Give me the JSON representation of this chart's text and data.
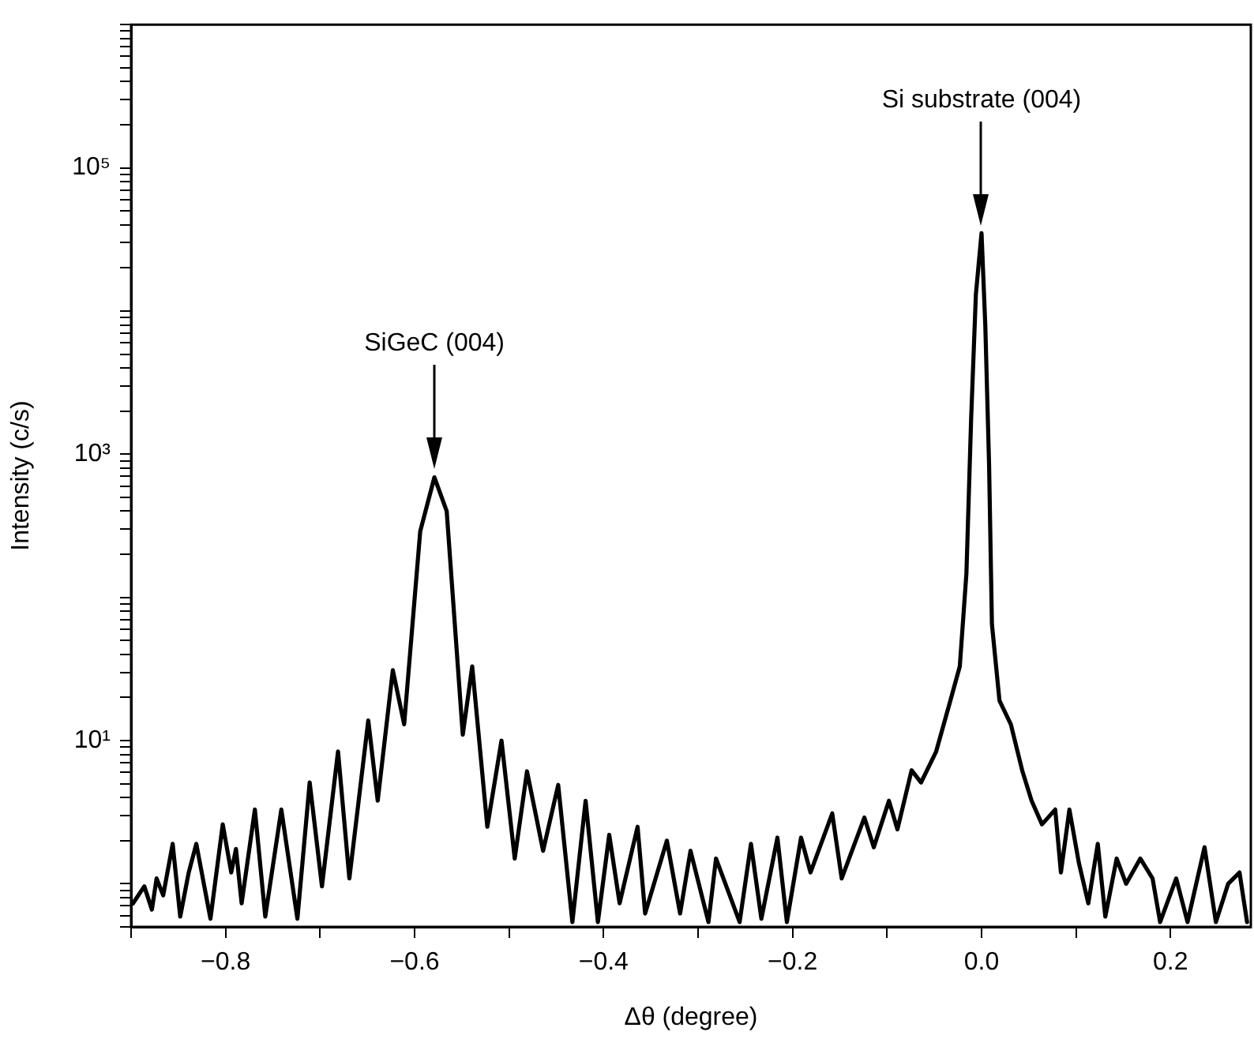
{
  "chart_data": {
    "type": "line",
    "xlabel": "Δθ (degree)",
    "ylabel": "Intensity (c/s)",
    "log": "y",
    "grid": false,
    "legend": false,
    "marker": "none",
    "line_style": "solid",
    "xlim": [
      -0.9,
      0.285
    ],
    "xticks": [
      {
        "value": -0.9,
        "label": null
      },
      {
        "value": -0.8,
        "label": "−0.8"
      },
      {
        "value": -0.7,
        "label": null
      },
      {
        "value": -0.6,
        "label": "−0.6"
      },
      {
        "value": -0.5,
        "label": null
      },
      {
        "value": -0.4,
        "label": "−0.4"
      },
      {
        "value": -0.3,
        "label": null
      },
      {
        "value": -0.2,
        "label": "−0.2"
      },
      {
        "value": -0.1,
        "label": null
      },
      {
        "value": 0,
        "label": "0.0"
      },
      {
        "value": 0.1,
        "label": null
      },
      {
        "value": 0.2,
        "label": "0.2"
      }
    ],
    "ylim": [
      0.5,
      1000000
    ],
    "yticks": [
      {
        "value": 0.5,
        "label": null
      },
      {
        "value": 0.6,
        "label": null
      },
      {
        "value": 0.7,
        "label": null
      },
      {
        "value": 0.8,
        "label": null
      },
      {
        "value": 0.9,
        "label": null
      },
      {
        "value": 1,
        "label": null
      },
      {
        "value": 2,
        "label": null
      },
      {
        "value": 3,
        "label": null
      },
      {
        "value": 4,
        "label": null
      },
      {
        "value": 5,
        "label": null
      },
      {
        "value": 6,
        "label": null
      },
      {
        "value": 7,
        "label": null
      },
      {
        "value": 8,
        "label": null
      },
      {
        "value": 9,
        "label": null
      },
      {
        "value": 10,
        "label": "10¹"
      },
      {
        "value": 20,
        "label": null
      },
      {
        "value": 30,
        "label": null
      },
      {
        "value": 40,
        "label": null
      },
      {
        "value": 50,
        "label": null
      },
      {
        "value": 60,
        "label": null
      },
      {
        "value": 70,
        "label": null
      },
      {
        "value": 80,
        "label": null
      },
      {
        "value": 90,
        "label": null
      },
      {
        "value": 100,
        "label": null
      },
      {
        "value": 200,
        "label": null
      },
      {
        "value": 300,
        "label": null
      },
      {
        "value": 400,
        "label": null
      },
      {
        "value": 500,
        "label": null
      },
      {
        "value": 600,
        "label": null
      },
      {
        "value": 700,
        "label": null
      },
      {
        "value": 800,
        "label": null
      },
      {
        "value": 900,
        "label": null
      },
      {
        "value": 1000,
        "label": "10³"
      },
      {
        "value": 2000,
        "label": null
      },
      {
        "value": 3000,
        "label": null
      },
      {
        "value": 4000,
        "label": null
      },
      {
        "value": 5000,
        "label": null
      },
      {
        "value": 6000,
        "label": null
      },
      {
        "value": 7000,
        "label": null
      },
      {
        "value": 8000,
        "label": null
      },
      {
        "value": 9000,
        "label": null
      },
      {
        "value": 10000,
        "label": null
      },
      {
        "value": 20000,
        "label": null
      },
      {
        "value": 30000,
        "label": null
      },
      {
        "value": 40000,
        "label": null
      },
      {
        "value": 50000,
        "label": null
      },
      {
        "value": 60000,
        "label": null
      },
      {
        "value": 70000,
        "label": null
      },
      {
        "value": 80000,
        "label": null
      },
      {
        "value": 90000,
        "label": null
      },
      {
        "value": 100000,
        "label": "10⁵"
      },
      {
        "value": 200000,
        "label": null
      },
      {
        "value": 300000,
        "label": null
      },
      {
        "value": 400000,
        "label": null
      },
      {
        "value": 500000,
        "label": null
      },
      {
        "value": 600000,
        "label": null
      },
      {
        "value": 700000,
        "label": null
      },
      {
        "value": 800000,
        "label": null
      },
      {
        "value": 900000,
        "label": null
      },
      {
        "value": 1000000,
        "label": null
      }
    ],
    "annotations": [
      "SiGeC (004)",
      "Si substrate (004)"
    ],
    "x": [
      -0.898,
      -0.886,
      -0.878,
      -0.873,
      -0.866,
      -0.856,
      -0.848,
      -0.839,
      -0.831,
      -0.816,
      -0.803,
      -0.794,
      -0.789,
      -0.783,
      -0.769,
      -0.758,
      -0.741,
      -0.724,
      -0.711,
      -0.698,
      -0.681,
      -0.669,
      -0.649,
      -0.639,
      -0.623,
      -0.611,
      -0.594,
      -0.579,
      -0.566,
      -0.549,
      -0.539,
      -0.523,
      -0.508,
      -0.494,
      -0.481,
      -0.464,
      -0.448,
      -0.433,
      -0.419,
      -0.406,
      -0.394,
      -0.383,
      -0.364,
      -0.356,
      -0.333,
      -0.319,
      -0.308,
      -0.289,
      -0.281,
      -0.256,
      -0.244,
      -0.233,
      -0.216,
      -0.206,
      -0.191,
      -0.181,
      -0.158,
      -0.148,
      -0.124,
      -0.114,
      -0.098,
      -0.089,
      -0.074,
      -0.064,
      -0.048,
      -0.033,
      -0.023,
      -0.016,
      -0.011,
      -0.006,
      0,
      0.004,
      0.008,
      0.011,
      0.019,
      0.031,
      0.043,
      0.053,
      0.064,
      0.078,
      0.084,
      0.093,
      0.103,
      0.113,
      0.123,
      0.131,
      0.143,
      0.153,
      0.168,
      0.181,
      0.189,
      0.206,
      0.218,
      0.236,
      0.248,
      0.261,
      0.273,
      0.281
    ],
    "series": [
      {
        "color": "#000000",
        "values": [
          0.73,
          0.96,
          0.66,
          1.09,
          0.83,
          1.9,
          0.59,
          1.2,
          1.9,
          0.57,
          2.6,
          1.2,
          1.75,
          0.73,
          3.3,
          0.59,
          3.3,
          0.57,
          5.1,
          0.96,
          8.4,
          1.09,
          13.8,
          3.8,
          31,
          13,
          290,
          690,
          400,
          11,
          33,
          2.5,
          10,
          1.5,
          6.1,
          1.7,
          4.9,
          0.54,
          3.8,
          0.54,
          2.2,
          0.73,
          2.5,
          0.62,
          2.0,
          0.62,
          1.7,
          0.54,
          1.5,
          0.54,
          1.9,
          0.57,
          2.1,
          0.54,
          2.1,
          1.2,
          3.1,
          1.09,
          2.9,
          1.8,
          3.8,
          2.4,
          6.2,
          5.1,
          8.4,
          19,
          33,
          147,
          1770,
          13000,
          35000,
          7900,
          840,
          65,
          19,
          13,
          6.2,
          3.8,
          2.6,
          3.3,
          1.2,
          3.3,
          1.4,
          0.73,
          1.9,
          0.59,
          1.5,
          1.0,
          1.5,
          1.09,
          0.54,
          1.09,
          0.54,
          1.8,
          0.54,
          1.0,
          1.2,
          0.54
        ]
      }
    ]
  }
}
